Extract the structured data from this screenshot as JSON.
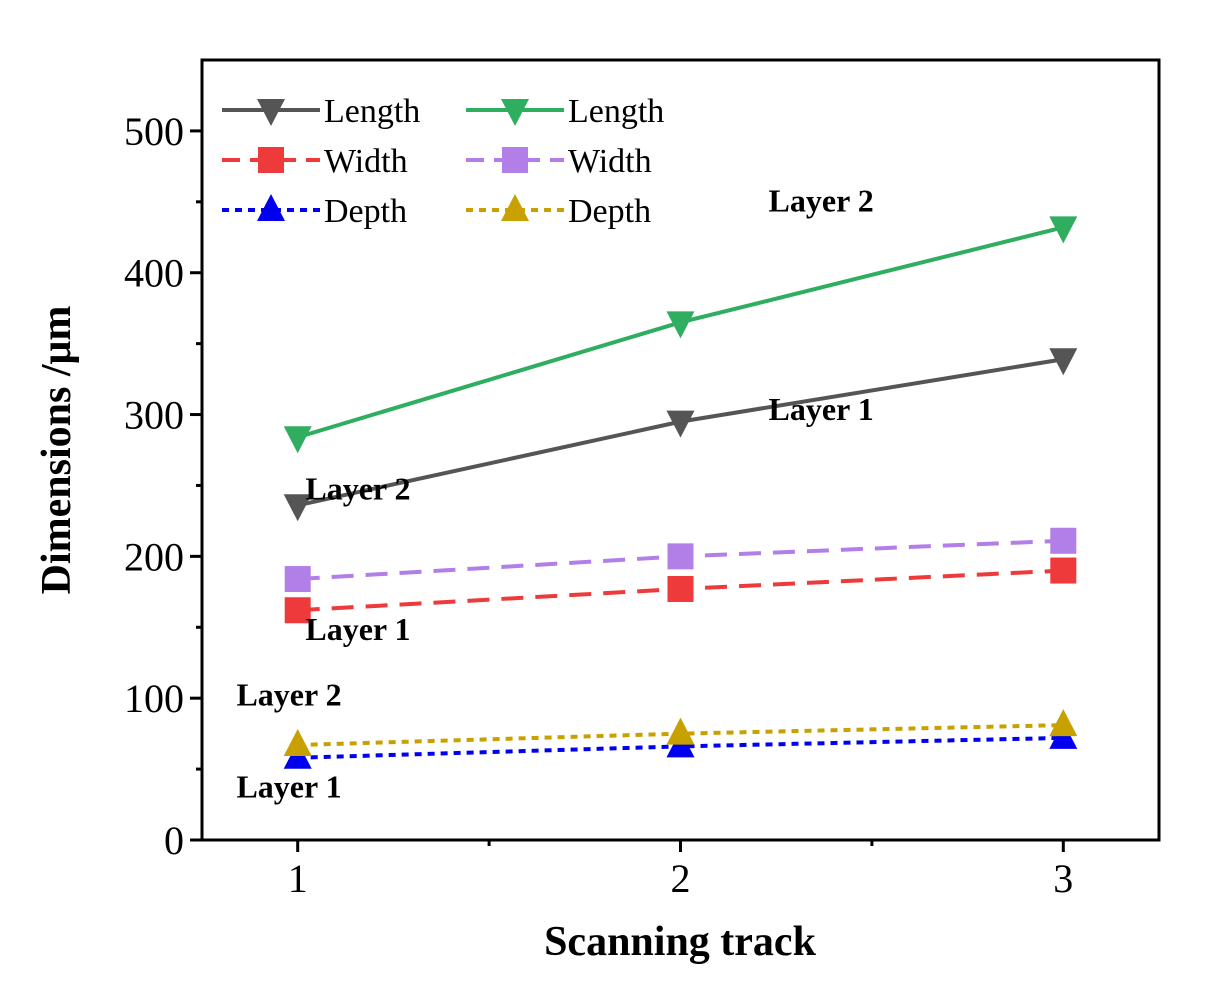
{
  "chart_data": {
    "type": "line",
    "title": "",
    "xlabel": "Scanning track",
    "ylabel": "Dimensions /μm",
    "x": [
      1,
      2,
      3
    ],
    "x_tick_labels": [
      "1",
      "2",
      "3"
    ],
    "xlim": [
      0.75,
      3.25
    ],
    "ylim": [
      0,
      550
    ],
    "y_ticks": [
      0,
      100,
      200,
      300,
      400,
      500
    ],
    "y_tick_labels": [
      "0",
      "100",
      "200",
      "300",
      "400",
      "500"
    ],
    "grid": false,
    "legend_position": "top-left",
    "series": [
      {
        "name": "Length",
        "layer": "Layer 1",
        "values": [
          236,
          295,
          339
        ],
        "color": "#555555",
        "dash": "solid",
        "marker": "triangle-down"
      },
      {
        "name": "Width",
        "layer": "Layer 1",
        "values": [
          162,
          177,
          190
        ],
        "color": "#ee3a3a",
        "dash": "dashed",
        "marker": "square"
      },
      {
        "name": "Depth",
        "layer": "Layer 1",
        "values": [
          58,
          66,
          72
        ],
        "color": "#0000ee",
        "dash": "dotted",
        "marker": "triangle-up"
      },
      {
        "name": "Length",
        "layer": "Layer 2",
        "values": [
          284,
          365,
          432
        ],
        "color": "#2eae5e",
        "dash": "solid",
        "marker": "triangle-down"
      },
      {
        "name": "Width",
        "layer": "Layer 2",
        "values": [
          184,
          200,
          211
        ],
        "color": "#b27ee8",
        "dash": "dashed",
        "marker": "square"
      },
      {
        "name": "Depth",
        "layer": "Layer 2",
        "values": [
          67,
          75,
          81
        ],
        "color": "#c8a000",
        "dash": "dotted",
        "marker": "triangle-up"
      }
    ],
    "annotations": [
      {
        "text": "Layer 2",
        "x": 2.23,
        "y": 443
      },
      {
        "text": "Layer 1",
        "x": 2.23,
        "y": 296
      },
      {
        "text": "Layer 2",
        "x": 1.02,
        "y": 240
      },
      {
        "text": "Layer 1",
        "x": 1.02,
        "y": 141
      },
      {
        "text": "Layer 2",
        "x": 0.84,
        "y": 95
      },
      {
        "text": "Layer 1",
        "x": 0.84,
        "y": 30
      }
    ]
  }
}
